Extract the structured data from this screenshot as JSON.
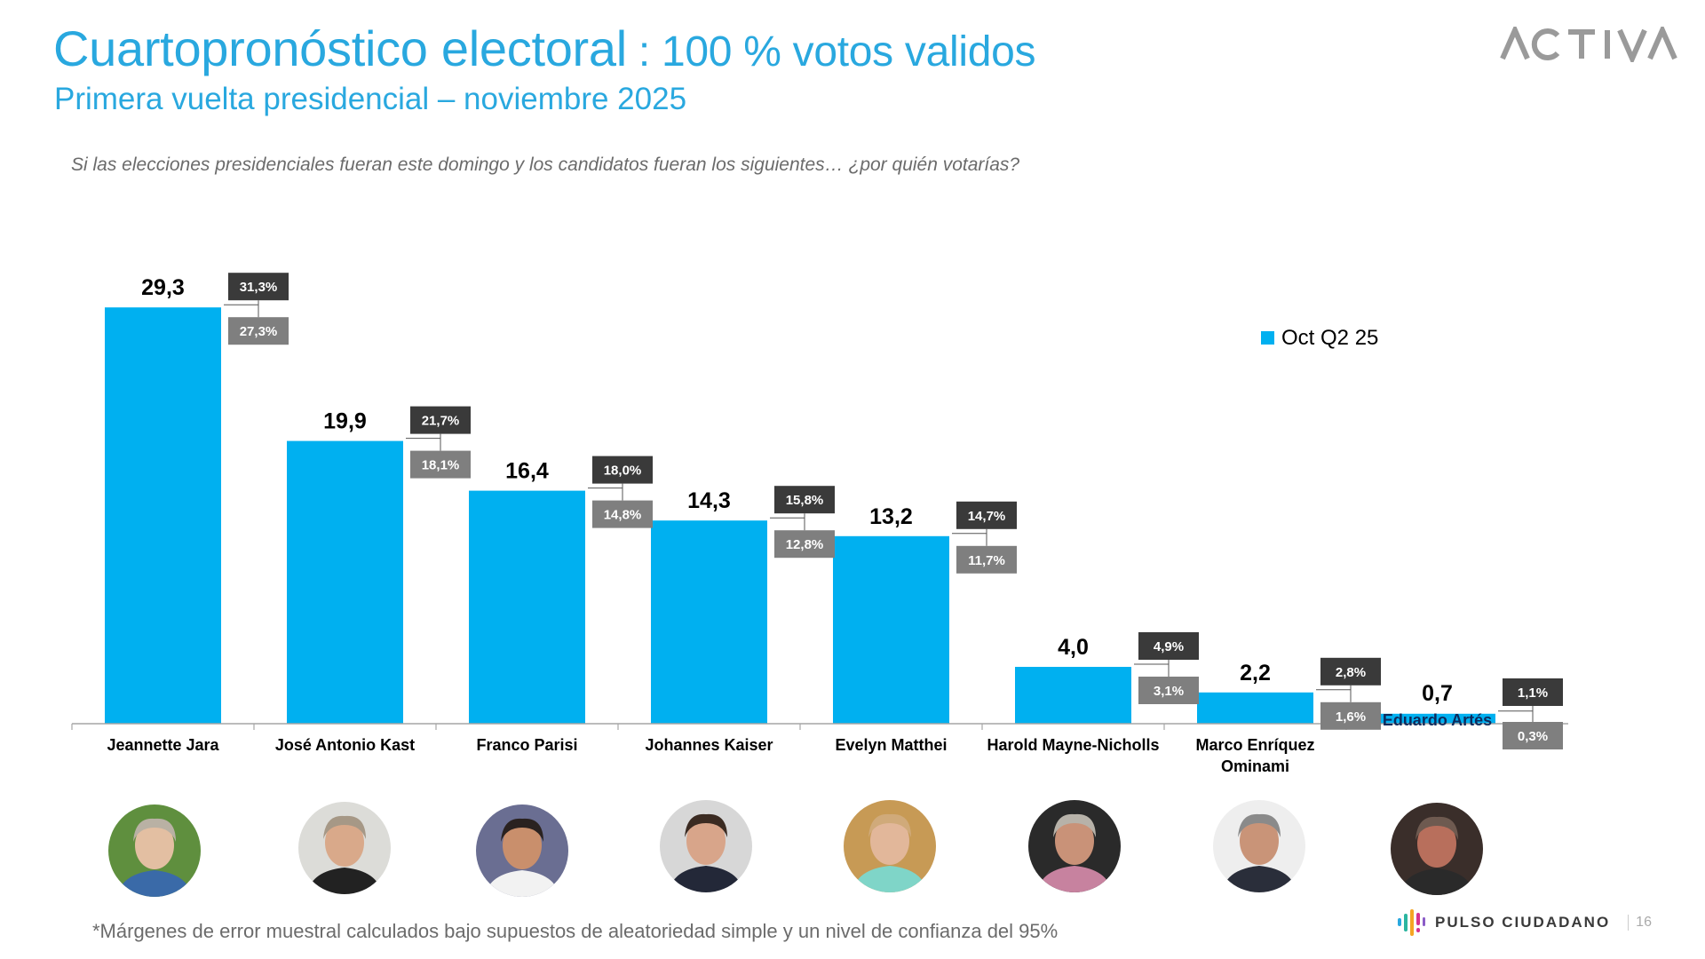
{
  "header": {
    "title_main": "Cuartopronóstico electoral",
    "title_sep": " : ",
    "title_sub": "100 % votos validos",
    "subtitle": "Primera vuelta presidencial – noviembre 2025",
    "question": "Si las elecciones presidenciales fueran este domingo y los candidatos fueran los siguientes… ¿por quién votarías?",
    "brand_logo": "ACTIVA"
  },
  "colors": {
    "title": "#29a8df",
    "bar": "#00b0f0",
    "upper_box": "#3a3a3a",
    "lower_box": "#7f7f7f"
  },
  "chart_data": {
    "type": "bar",
    "title": "Cuartopronóstico electoral : 100 % votos validos",
    "xlabel": "",
    "ylabel": "",
    "ylim": [
      0,
      30
    ],
    "grid": false,
    "legend": {
      "position": "top-right",
      "entries": [
        "Oct Q2 25"
      ]
    },
    "categories": [
      "Jeannette Jara",
      "José Antonio Kast",
      "Franco Parisi",
      "Johannes Kaiser",
      "Evelyn Matthei",
      "Harold Mayne-Nicholls",
      "Marco Enríquez Ominami",
      "Eduardo Artés"
    ],
    "category_label_lines": [
      [
        "Jeannette Jara"
      ],
      [
        "José Antonio Kast"
      ],
      [
        "Franco Parisi"
      ],
      [
        "Johannes Kaiser"
      ],
      [
        "Evelyn Matthei"
      ],
      [
        "Harold Mayne-Nicholls"
      ],
      [
        "Marco Enríquez",
        "Ominami"
      ],
      [
        "Eduardo Artés"
      ]
    ],
    "series": [
      {
        "name": "Oct Q2 25",
        "values": [
          29.3,
          19.9,
          16.4,
          14.3,
          13.2,
          4.0,
          2.2,
          0.7
        ],
        "value_labels": [
          "29,3",
          "19,9",
          "16,4",
          "14,3",
          "13,2",
          "4,0",
          "2,2",
          "0,7"
        ]
      }
    ],
    "error_margins": {
      "upper": [
        31.3,
        21.7,
        18.0,
        15.8,
        14.7,
        4.9,
        2.8,
        1.1
      ],
      "lower": [
        27.3,
        18.1,
        14.8,
        12.8,
        11.7,
        3.1,
        1.6,
        0.3
      ],
      "upper_labels": [
        "31,3%",
        "21,7%",
        "18,0%",
        "15,8%",
        "14,7%",
        "4,9%",
        "2,8%",
        "1,1%"
      ],
      "lower_labels": [
        "27,3%",
        "18,1%",
        "14,8%",
        "12,8%",
        "11,7%",
        "3,1%",
        "1,6%",
        "0,3%"
      ]
    }
  },
  "photos": [
    {
      "name": "Jeannette Jara",
      "bg": "#5f8f3e",
      "face": "#e3bfa2",
      "hair": "#b9b1a4",
      "shirt": "#3a6aa8"
    },
    {
      "name": "José Antonio Kast",
      "bg": "#dcdcd8",
      "face": "#d9a98a",
      "hair": "#a69886",
      "shirt": "#222222"
    },
    {
      "name": "Franco Parisi",
      "bg": "#6a6e92",
      "face": "#c98f6c",
      "hair": "#2a2220",
      "shirt": "#f2f2f2"
    },
    {
      "name": "Johannes Kaiser",
      "bg": "#d7d7d7",
      "face": "#d8a58a",
      "hair": "#3b2b22",
      "shirt": "#232838"
    },
    {
      "name": "Evelyn Matthei",
      "bg": "#c79a55",
      "face": "#e2b79a",
      "hair": "#d0aa7a",
      "shirt": "#7fd5c8"
    },
    {
      "name": "Harold Mayne-Nicholls",
      "bg": "#2a2a2a",
      "face": "#c99278",
      "hair": "#b7b2a9",
      "shirt": "#c7829f"
    },
    {
      "name": "Marco Enríquez Ominami",
      "bg": "#eeeeee",
      "face": "#c99478",
      "hair": "#8a8a8a",
      "shirt": "#2a2e3a"
    },
    {
      "name": "Eduardo Artés",
      "bg": "#3a2e2a",
      "face": "#b86f5c",
      "hair": "#6e5a50",
      "shirt": "#2a2a2a"
    }
  ],
  "footer": {
    "footnote": "*Márgenes de error muestral calculados bajo supuestos de aleatoriedad simple y un nivel de confianza del 95%",
    "brand": "PULSO CIUDADANO",
    "page_number": "16"
  }
}
